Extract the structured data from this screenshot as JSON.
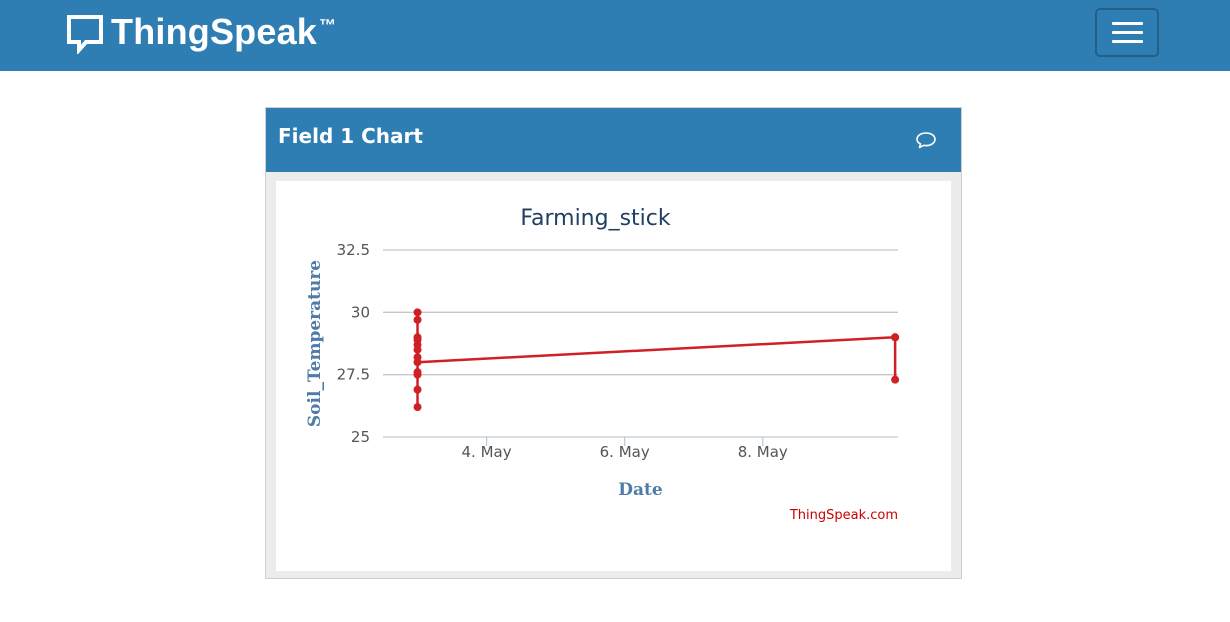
{
  "navbar": {
    "brand_name": "ThingSpeak",
    "brand_tm": "™",
    "color": "#2e7eb3"
  },
  "panel": {
    "title": "Field 1 Chart",
    "comment_icon": "speech-bubble-icon"
  },
  "chart_data": {
    "type": "line",
    "title": "Farming_stick",
    "xlabel": "Date",
    "ylabel": "Soil_Temperature",
    "credit": "ThingSpeak.com",
    "xlim": [
      "2020-05-02T12:00",
      "2020-05-09T23:00"
    ],
    "ylim": [
      25,
      32.5
    ],
    "x_ticks": [
      {
        "date": "2020-05-04",
        "label": "4. May"
      },
      {
        "date": "2020-05-06",
        "label": "6. May"
      },
      {
        "date": "2020-05-08",
        "label": "8. May"
      }
    ],
    "y_ticks": [
      {
        "value": 25,
        "label": "25"
      },
      {
        "value": 27.5,
        "label": "27.5"
      },
      {
        "value": 30,
        "label": "30"
      },
      {
        "value": 32.5,
        "label": "32.5"
      }
    ],
    "grid": true,
    "legend": "none",
    "series": [
      {
        "color": "#d11f26",
        "points": [
          {
            "x": "2020-05-03T00:00",
            "y": 26.2
          },
          {
            "x": "2020-05-03T00:00",
            "y": 26.9
          },
          {
            "x": "2020-05-03T00:00",
            "y": 27.6
          },
          {
            "x": "2020-05-03T00:00",
            "y": 27.5
          },
          {
            "x": "2020-05-03T00:00",
            "y": 28.2
          },
          {
            "x": "2020-05-03T00:00",
            "y": 28.5
          },
          {
            "x": "2020-05-03T00:00",
            "y": 28.7
          },
          {
            "x": "2020-05-03T00:00",
            "y": 28.9
          },
          {
            "x": "2020-05-03T00:00",
            "y": 29.0
          },
          {
            "x": "2020-05-03T00:00",
            "y": 29.7
          },
          {
            "x": "2020-05-03T00:00",
            "y": 30.0
          },
          {
            "x": "2020-05-03T00:00",
            "y": 28.0
          },
          {
            "x": "2020-05-09T22:00",
            "y": 29.0
          },
          {
            "x": "2020-05-09T22:00",
            "y": 29.0
          },
          {
            "x": "2020-05-09T22:00",
            "y": 27.3
          }
        ]
      }
    ]
  }
}
